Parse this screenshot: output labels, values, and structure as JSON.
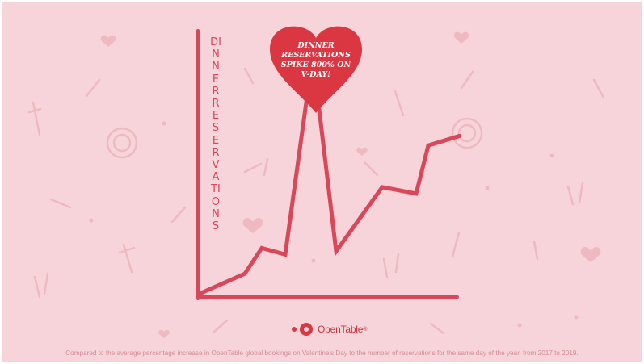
{
  "heart_callout": "DINNER RESERVATIONS SPIKE 800% ON V-DAY!",
  "logo": {
    "text": "OpenTable",
    "registered": "®"
  },
  "footnote": "Compared to the average percentage increase in OpenTable global bookings on Valentine's Day to the number of reservations for the same day of the year, from 2017 to 2019.",
  "colors": {
    "background": "#f7d4d9",
    "accent": "#da3743",
    "line": "#d9475a",
    "faint": "#efb9c1"
  },
  "chart_data": {
    "type": "line",
    "title": "",
    "ylabel": "DINNER RESERVATIONS",
    "xlabel": "",
    "ylim": [
      0,
      100
    ],
    "grid": false,
    "series": [
      {
        "values": [
          0,
          6,
          14,
          12,
          74,
          13,
          33,
          31,
          46,
          49
        ]
      }
    ],
    "annotation": "DINNER RESERVATIONS SPIKE 800% ON V-DAY!"
  }
}
